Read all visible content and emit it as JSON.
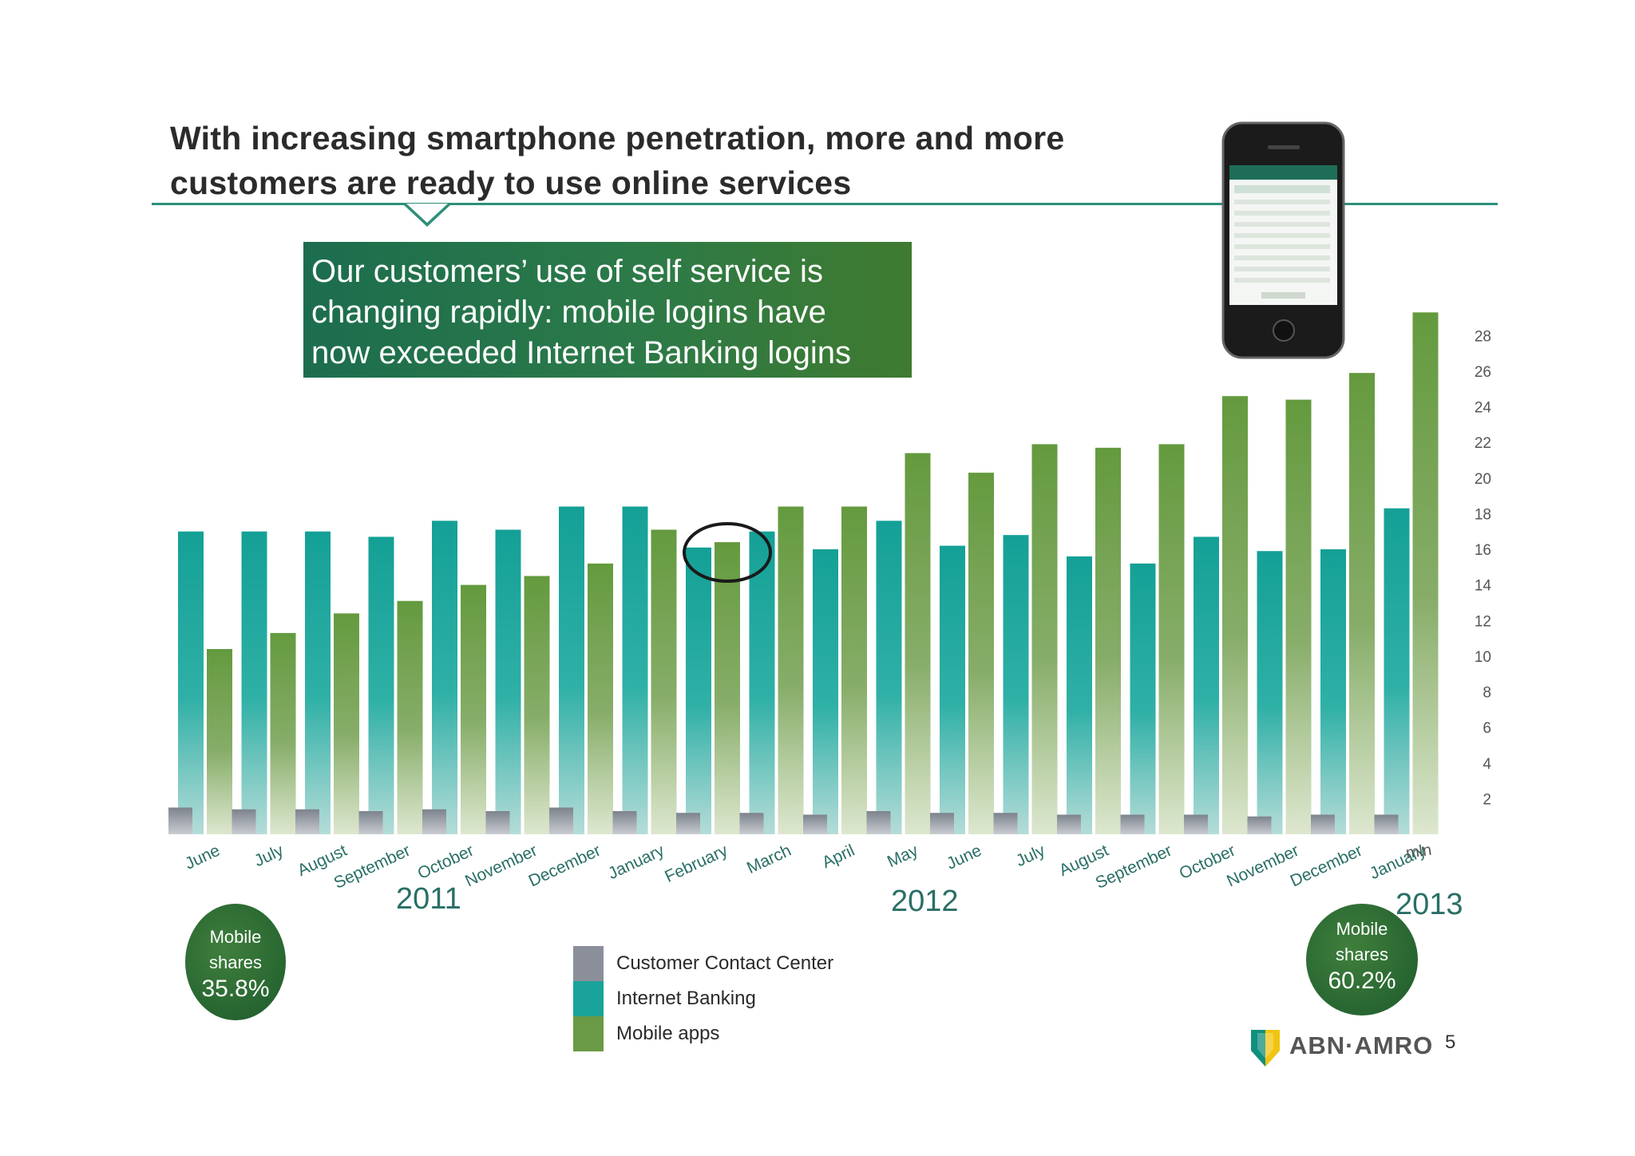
{
  "title_line1": "With increasing smartphone penetration, more and more",
  "title_line2": "customers are ready to use online services",
  "callout_line1": "Our customers’ use of self service is",
  "callout_line2": "changing rapidly: mobile logins have",
  "callout_line3": "now exceeded Internet Banking logins",
  "badges": {
    "left": {
      "line1": "Mobile",
      "line2": "shares",
      "pct": "35.8%"
    },
    "right": {
      "line1": "Mobile",
      "line2": "shares",
      "pct": "60.2%"
    }
  },
  "brand": "ABN·AMRO",
  "page_number": "5",
  "colors": {
    "ccc": "#8a8f99",
    "ib": "#1aa39a",
    "mobile": "#6a9a46",
    "rule": "#2e8f7a"
  },
  "chart_data": {
    "type": "bar",
    "unit_label": "mln",
    "ylim": [
      0,
      29
    ],
    "yticks": [
      2,
      4,
      6,
      8,
      10,
      12,
      14,
      16,
      18,
      20,
      22,
      24,
      26,
      28
    ],
    "years": [
      {
        "label": "2011",
        "after_index": 2
      },
      {
        "label": "2012",
        "after_index": 12
      },
      {
        "label": "2013",
        "after_index": 19
      }
    ],
    "categories": [
      "June",
      "July",
      "August",
      "September",
      "October",
      "November",
      "December",
      "January",
      "February",
      "March",
      "April",
      "May",
      "June",
      "July",
      "August",
      "September",
      "October",
      "November",
      "December",
      "January"
    ],
    "series": [
      {
        "name": "Customer Contact Center",
        "values": [
          1.5,
          1.4,
          1.4,
          1.3,
          1.4,
          1.3,
          1.5,
          1.3,
          1.2,
          1.2,
          1.1,
          1.3,
          1.2,
          1.2,
          1.1,
          1.1,
          1.1,
          1.0,
          1.1,
          1.1
        ]
      },
      {
        "name": "Internet Banking",
        "values": [
          17.0,
          17.0,
          17.0,
          16.7,
          17.6,
          17.1,
          18.4,
          18.4,
          16.1,
          17.0,
          16.0,
          17.6,
          16.2,
          16.8,
          15.6,
          15.2,
          16.7,
          15.9,
          16.0,
          18.3
        ]
      },
      {
        "name": "Mobile apps",
        "values": [
          10.4,
          11.3,
          12.4,
          13.1,
          14.0,
          14.5,
          15.2,
          17.1,
          16.4,
          18.4,
          18.4,
          21.4,
          20.3,
          21.9,
          21.7,
          21.9,
          24.6,
          24.4,
          25.9,
          29.3
        ]
      }
    ],
    "highlight_index": 8
  }
}
